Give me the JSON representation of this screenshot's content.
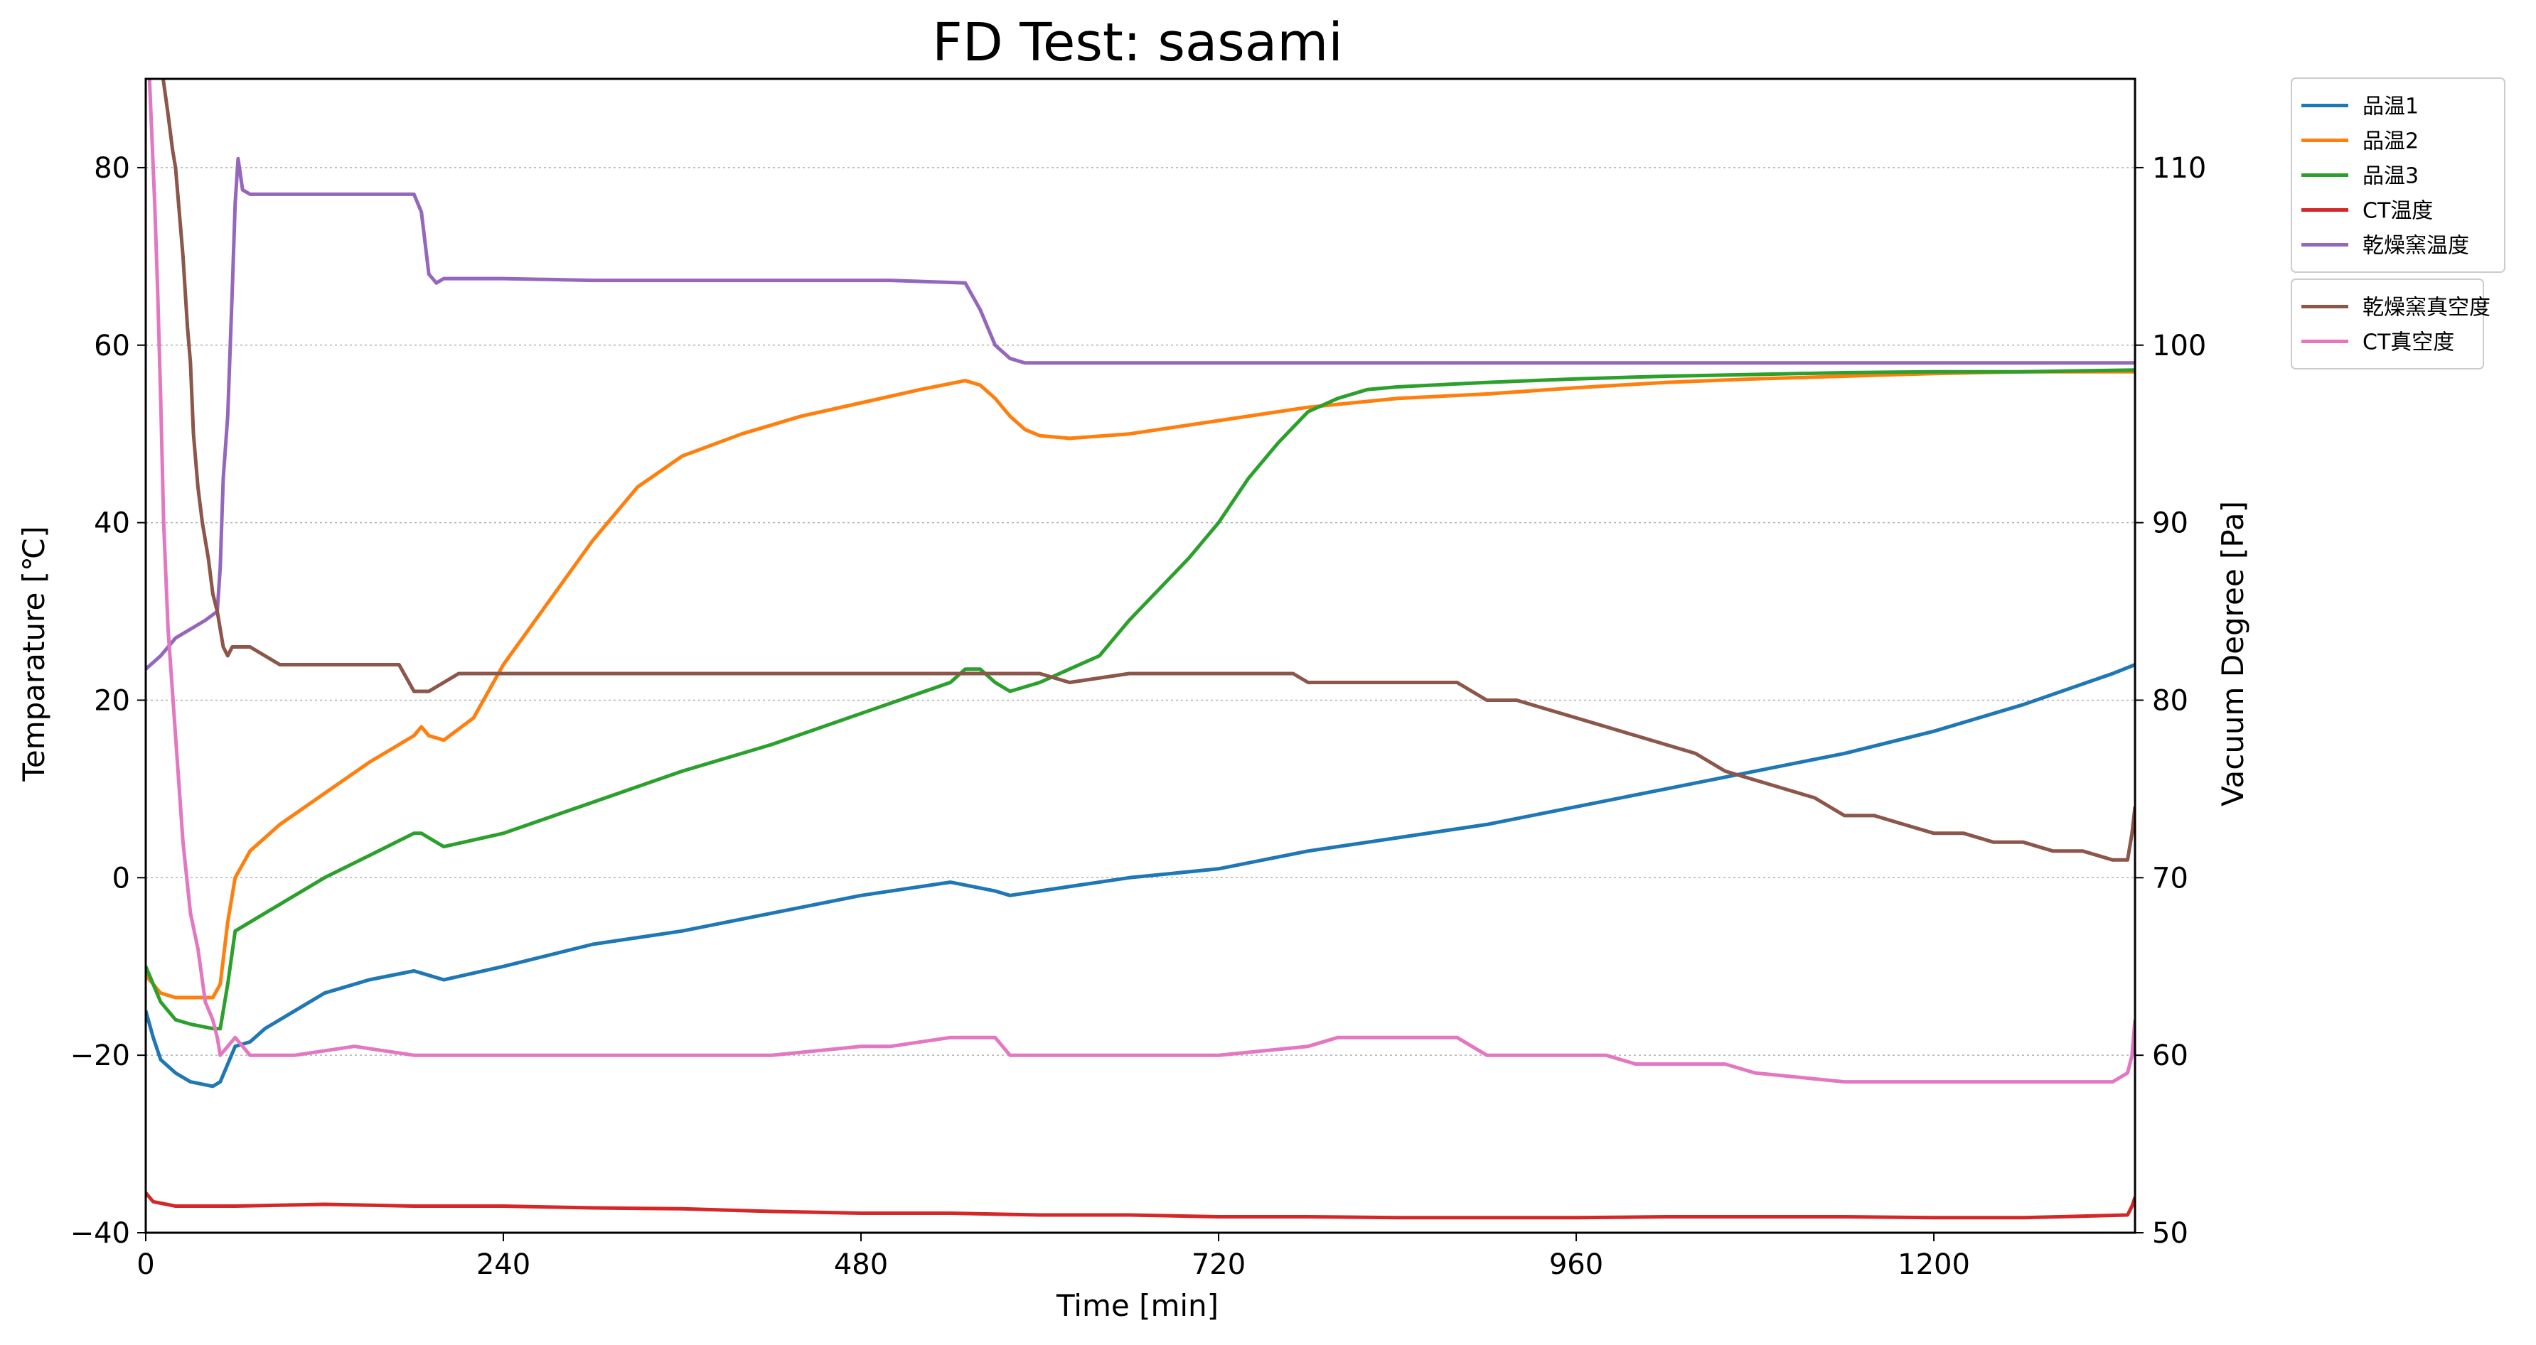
{
  "chart_data": {
    "type": "line",
    "title": "FD Test: sasami",
    "xlabel": "Time [min]",
    "ylabel": "Temparature [℃]",
    "y2label": "Vacuum Degree [Pa]",
    "xlim": [
      0,
      1335
    ],
    "ylim": [
      -40,
      90
    ],
    "y2lim": [
      50,
      115
    ],
    "xticks": [
      0,
      240,
      480,
      720,
      960,
      1200
    ],
    "yticks": [
      -40,
      -20,
      0,
      20,
      40,
      60,
      80
    ],
    "y2ticks": [
      50,
      60,
      70,
      80,
      90,
      100,
      110
    ],
    "ytick_labels": [
      "−40",
      "−20",
      "0",
      "20",
      "40",
      "60",
      "80"
    ],
    "grid": "horizontal dotted",
    "legend_position": "outside top-right",
    "series": [
      {
        "name": "品温1",
        "axis": "left",
        "color": "#1f77b4",
        "x": [
          0,
          5,
          10,
          20,
          30,
          45,
          50,
          55,
          60,
          70,
          80,
          100,
          120,
          150,
          180,
          190,
          200,
          240,
          300,
          360,
          420,
          480,
          540,
          570,
          580,
          600,
          660,
          720,
          780,
          840,
          900,
          960,
          1020,
          1080,
          1140,
          1200,
          1260,
          1320,
          1335
        ],
        "y": [
          -15,
          -18,
          -20.5,
          -22,
          -23,
          -23.5,
          -23,
          -21,
          -19,
          -18.5,
          -17,
          -15,
          -13,
          -11.5,
          -10.5,
          -11,
          -11.5,
          -10,
          -7.5,
          -6,
          -4,
          -2,
          -0.5,
          -1.5,
          -2,
          -1.5,
          0,
          1,
          3,
          4.5,
          6,
          8,
          10,
          12,
          14,
          16.5,
          19.5,
          23,
          24
        ]
      },
      {
        "name": "品温2",
        "axis": "left",
        "color": "#ff7f0e",
        "x": [
          0,
          10,
          20,
          30,
          45,
          50,
          55,
          60,
          70,
          90,
          120,
          150,
          180,
          185,
          190,
          200,
          220,
          240,
          270,
          300,
          330,
          360,
          400,
          440,
          480,
          520,
          550,
          560,
          570,
          580,
          590,
          600,
          620,
          660,
          720,
          780,
          840,
          900,
          960,
          1020,
          1080,
          1140,
          1200,
          1260,
          1335
        ],
        "y": [
          -11,
          -13,
          -13.5,
          -13.5,
          -13.5,
          -12,
          -5,
          0,
          3,
          6,
          9.5,
          13,
          16,
          17,
          16,
          15.5,
          18,
          24,
          31,
          38,
          44,
          47.5,
          50,
          52,
          53.5,
          55,
          56,
          55.5,
          54,
          52,
          50.5,
          49.8,
          49.5,
          50,
          51.5,
          53,
          54,
          54.5,
          55.2,
          55.8,
          56.2,
          56.5,
          56.8,
          57,
          57
        ]
      },
      {
        "name": "品温3",
        "axis": "left",
        "color": "#2ca02c",
        "x": [
          0,
          10,
          20,
          30,
          45,
          50,
          55,
          60,
          70,
          90,
          120,
          150,
          180,
          185,
          190,
          200,
          240,
          300,
          360,
          420,
          480,
          540,
          550,
          560,
          570,
          580,
          600,
          620,
          640,
          660,
          700,
          720,
          740,
          760,
          780,
          800,
          820,
          840,
          900,
          960,
          1020,
          1080,
          1140,
          1200,
          1260,
          1335
        ],
        "y": [
          -10,
          -14,
          -16,
          -16.5,
          -17,
          -17,
          -12,
          -6,
          -5,
          -3,
          0,
          2.5,
          5,
          5,
          4.5,
          3.5,
          5,
          8.5,
          12,
          15,
          18.5,
          22,
          23.5,
          23.5,
          22,
          21,
          22,
          23.5,
          25,
          29,
          36,
          40,
          45,
          49,
          52.5,
          54,
          55,
          55.3,
          55.8,
          56.2,
          56.5,
          56.7,
          56.9,
          57,
          57,
          57.2
        ]
      },
      {
        "name": "CT温度",
        "axis": "left",
        "color": "#d62728",
        "x": [
          0,
          5,
          20,
          60,
          120,
          180,
          240,
          300,
          360,
          420,
          480,
          540,
          600,
          660,
          720,
          780,
          840,
          900,
          960,
          1020,
          1080,
          1140,
          1200,
          1260,
          1330,
          1333,
          1335
        ],
        "y": [
          -35.5,
          -36.5,
          -37,
          -37,
          -36.8,
          -37,
          -37,
          -37.2,
          -37.3,
          -37.6,
          -37.8,
          -37.8,
          -38,
          -38,
          -38.2,
          -38.2,
          -38.3,
          -38.3,
          -38.3,
          -38.2,
          -38.2,
          -38.2,
          -38.3,
          -38.3,
          -38,
          -37,
          -36
        ]
      },
      {
        "name": "乾燥窯温度",
        "axis": "left",
        "color": "#9467bd",
        "x": [
          0,
          10,
          20,
          30,
          40,
          48,
          50,
          52,
          55,
          58,
          60,
          62,
          65,
          70,
          100,
          150,
          180,
          185,
          190,
          195,
          200,
          240,
          300,
          400,
          500,
          550,
          560,
          570,
          580,
          590,
          600,
          660,
          720,
          780,
          840,
          900,
          960,
          1020,
          1080,
          1140,
          1200,
          1260,
          1320,
          1335
        ],
        "y": [
          23.5,
          25,
          27,
          28,
          29,
          30,
          35,
          45,
          52,
          66,
          76,
          81,
          77.5,
          77,
          77,
          77,
          77,
          75,
          68,
          67,
          67.5,
          67.5,
          67.3,
          67.3,
          67.3,
          67,
          64,
          60,
          58.5,
          58,
          58,
          58,
          58,
          58,
          58,
          58,
          58,
          58,
          58,
          58,
          58,
          58,
          58,
          58
        ]
      },
      {
        "name": "乾燥窯真空度",
        "axis": "right",
        "color": "#8c564b",
        "x": [
          0,
          5,
          10,
          15,
          18,
          20,
          25,
          28,
          30,
          32,
          35,
          38,
          40,
          42,
          45,
          48,
          50,
          52,
          55,
          58,
          60,
          70,
          80,
          90,
          100,
          110,
          120,
          130,
          140,
          150,
          160,
          170,
          180,
          190,
          200,
          210,
          220,
          240,
          260,
          300,
          340,
          380,
          420,
          460,
          480,
          500,
          540,
          560,
          580,
          600,
          620,
          660,
          720,
          770,
          780,
          800,
          840,
          860,
          880,
          900,
          920,
          940,
          960,
          980,
          1000,
          1020,
          1040,
          1060,
          1080,
          1100,
          1120,
          1140,
          1160,
          1180,
          1200,
          1220,
          1240,
          1260,
          1280,
          1300,
          1320,
          1330,
          1333,
          1335
        ],
        "y": [
          118,
          117,
          116,
          113,
          111,
          110,
          105,
          101,
          99,
          95,
          92,
          90,
          89,
          88,
          86,
          85,
          84,
          83,
          82.5,
          83,
          83,
          83,
          82.5,
          82,
          82,
          82,
          82,
          82,
          82,
          82,
          82,
          82,
          80.5,
          80.5,
          81,
          81.5,
          81.5,
          81.5,
          81.5,
          81.5,
          81.5,
          81.5,
          81.5,
          81.5,
          81.5,
          81.5,
          81.5,
          81.5,
          81.5,
          81.5,
          81,
          81.5,
          81.5,
          81.5,
          81,
          81,
          81,
          81,
          81,
          80,
          80,
          79.5,
          79,
          78.5,
          78,
          77.5,
          77,
          76,
          75.5,
          75,
          74.5,
          73.5,
          73.5,
          73,
          72.5,
          72.5,
          72,
          72,
          71.5,
          71.5,
          71,
          71,
          72.5,
          74
        ]
      },
      {
        "name": "CT真空度",
        "axis": "right",
        "color": "#e377c2",
        "x": [
          0,
          2,
          4,
          6,
          8,
          10,
          12,
          15,
          20,
          25,
          30,
          35,
          40,
          45,
          48,
          50,
          55,
          60,
          70,
          80,
          100,
          140,
          180,
          220,
          260,
          300,
          360,
          420,
          480,
          500,
          540,
          570,
          580,
          600,
          660,
          720,
          780,
          800,
          840,
          880,
          900,
          960,
          980,
          1000,
          1060,
          1080,
          1140,
          1200,
          1230,
          1260,
          1300,
          1320,
          1330,
          1333,
          1335
        ],
        "y": [
          118,
          116,
          112,
          108,
          103,
          97,
          90,
          84,
          78,
          72,
          68,
          66,
          63,
          62,
          61,
          60,
          60.5,
          61,
          60,
          60,
          60,
          60.5,
          60,
          60,
          60,
          60,
          60,
          60,
          60.5,
          60.5,
          61,
          61,
          60,
          60,
          60,
          60,
          60.5,
          61,
          61,
          61,
          60,
          60,
          60,
          59.5,
          59.5,
          59,
          58.5,
          58.5,
          58.5,
          58.5,
          58.5,
          58.5,
          59,
          60,
          62
        ]
      }
    ]
  }
}
